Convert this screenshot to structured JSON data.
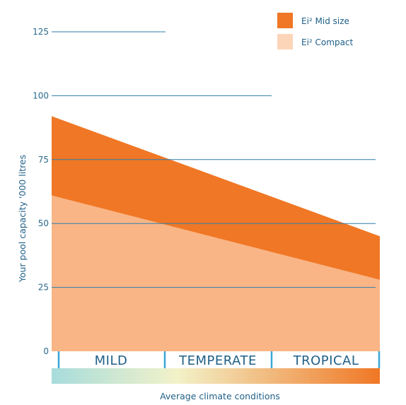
{
  "chart_data": {
    "type": "area",
    "ylabel": "Your pool capacity '000 litres",
    "xlabel": "Average climate conditions",
    "ylim": [
      0,
      125
    ],
    "yticks": [
      0,
      25,
      50,
      75,
      100,
      125
    ],
    "categories": [
      "MILD",
      "TEMPERATE",
      "TROPICAL"
    ],
    "x": [
      0,
      1
    ],
    "series": [
      {
        "name": "Ei² Compact",
        "color": "#f9b586",
        "values": [
          61,
          28
        ]
      },
      {
        "name": "Ei² Mid size",
        "color": "#f07725",
        "values": [
          92,
          45
        ]
      }
    ],
    "legend": {
      "position": "top-right",
      "items": [
        {
          "label": "Ei² Mid size",
          "color": "#f07725"
        },
        {
          "label": "Ei² Compact",
          "color": "#fcd5b8"
        }
      ]
    },
    "climate_gradient": [
      "#a7dcdc",
      "#f2f2c9",
      "#f07725"
    ],
    "grid": true,
    "grid_color": "#2f7fae",
    "text_color": "#1f5f87",
    "zone_divider_color": "#3aa6d6"
  }
}
